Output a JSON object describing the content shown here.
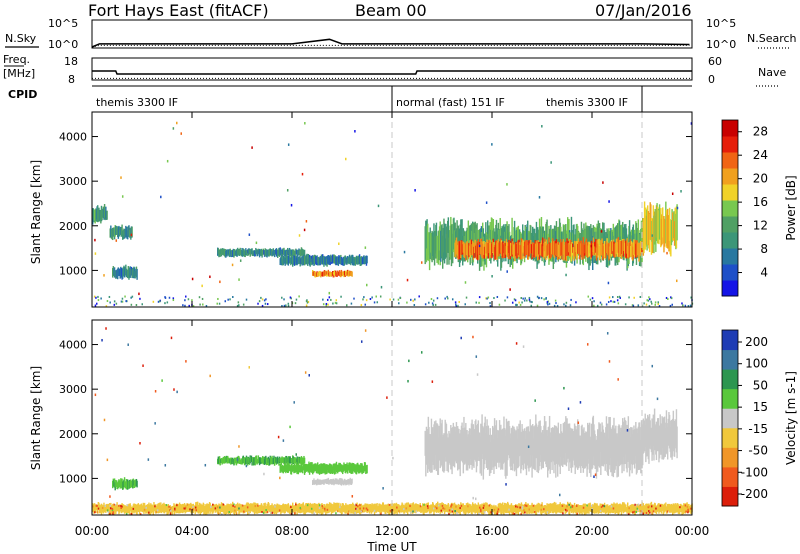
{
  "header": {
    "station": "Fort Hays East (fitACF)",
    "beam": "Beam 00",
    "date": "07/Jan/2016"
  },
  "labels": {
    "nsky": "N.Sky",
    "nsearch": "N.Search",
    "freq_line1": "Freq.",
    "freq_line2": "[MHz]",
    "nave": "Nave",
    "cpid": "CPID"
  },
  "noise_panel": {
    "ticks_left": [
      "10^5",
      "10^0"
    ],
    "ticks_right": [
      "10^5",
      "10^0"
    ]
  },
  "freq_panel": {
    "ticks_left": [
      "18",
      "8"
    ],
    "ticks_right": [
      "60",
      "0"
    ]
  },
  "cpid_segments": [
    {
      "label": "themis 3300 IF",
      "start": 0.0,
      "end": 12.0
    },
    {
      "label": "normal (fast) 151 IF",
      "start": 12.0,
      "end": 18.0
    },
    {
      "label": "themis 3300 IF",
      "start": 18.0,
      "end": 22.0
    }
  ],
  "cpid_dividers": [
    12.0,
    22.0
  ],
  "x_axis": {
    "label": "Time UT",
    "ticks": [
      "00:00",
      "04:00",
      "08:00",
      "12:00",
      "16:00",
      "20:00",
      "00:00"
    ]
  },
  "y_axis": {
    "label": "Slant Range [km]",
    "ticks": [
      "1000",
      "2000",
      "3000",
      "4000"
    ]
  },
  "power_scale": {
    "label": "Power [dB]",
    "ticks": [
      "4",
      "8",
      "12",
      "16",
      "20",
      "24",
      "28"
    ],
    "colors": [
      "#1414e6",
      "#1e50c8",
      "#2878a0",
      "#3c9678",
      "#50a064",
      "#78c850",
      "#f0d228",
      "#f0a01e",
      "#f06414",
      "#e61e0a",
      "#c80000"
    ]
  },
  "velocity_scale": {
    "label": "Velocity [m s-1]",
    "ticks": [
      "200",
      "100",
      "50",
      "15",
      "-15",
      "-50",
      "-100",
      "-200"
    ],
    "colors": [
      "#1e3cb4",
      "#3c78a0",
      "#2d9650",
      "#5ac83c",
      "#c8c8c8",
      "#f0c83c",
      "#f09628",
      "#f05a1e",
      "#dc1e0a"
    ]
  },
  "chart_data": [
    {
      "type": "line",
      "title": "N.Sky / N.Search",
      "x": [
        0,
        0.3,
        2,
        4,
        6,
        8,
        9.5,
        10,
        12,
        14,
        16,
        18,
        20,
        22,
        23.9
      ],
      "series": [
        {
          "name": "N.Sky",
          "values": [
            1,
            4,
            4,
            4,
            4,
            4,
            30,
            4,
            4,
            4,
            4,
            4,
            4,
            4,
            3
          ]
        },
        {
          "name": "N.Search",
          "values": [
            1,
            2,
            2,
            2,
            2,
            2,
            2,
            2,
            2,
            2,
            2,
            2,
            2,
            2,
            2
          ]
        }
      ],
      "xlim": [
        0,
        24
      ]
    },
    {
      "type": "line",
      "title": "Freq. / Nave",
      "x": [
        0,
        0.95,
        1.0,
        12.0,
        12.95,
        13.0,
        24
      ],
      "series": [
        {
          "name": "Freq. [MHz]",
          "values": [
            12.0,
            12.0,
            10.5,
            10.5,
            10.5,
            12.0,
            12.0
          ]
        },
        {
          "name": "Nave",
          "values": [
            20,
            20,
            20,
            20,
            20,
            20,
            20
          ]
        }
      ],
      "xlim": [
        0,
        24
      ],
      "ylim": [
        8,
        18
      ]
    },
    {
      "type": "heatmap",
      "title": "Power [dB]",
      "xlabel": "Time UT",
      "ylabel": "Slant Range [km]",
      "xlim": [
        0,
        24
      ],
      "ylim": [
        180,
        4550
      ],
      "zlim": [
        0,
        30
      ],
      "bands": [
        {
          "t0": 0.8,
          "t1": 1.8,
          "r0": 800,
          "r1": 1100,
          "value": 8
        },
        {
          "t0": 0.0,
          "t1": 0.6,
          "r0": 2050,
          "r1": 2450,
          "value": 10
        },
        {
          "t0": 0.7,
          "t1": 1.6,
          "r0": 1700,
          "r1": 2000,
          "value": 10
        },
        {
          "t0": 5.0,
          "t1": 8.5,
          "r0": 1300,
          "r1": 1500,
          "value": 9
        },
        {
          "t0": 7.5,
          "t1": 11.0,
          "r0": 1100,
          "r1": 1350,
          "value": 8
        },
        {
          "t0": 8.8,
          "t1": 10.4,
          "r0": 850,
          "r1": 1000,
          "value": 22
        },
        {
          "t0": 13.3,
          "t1": 22.0,
          "r0": 1100,
          "r1": 2100,
          "value": 12
        },
        {
          "t0": 14.5,
          "t1": 22.0,
          "r0": 1250,
          "r1": 1700,
          "value": 22
        },
        {
          "t0": 22.0,
          "t1": 23.4,
          "r0": 1400,
          "r1": 2450,
          "value": 18
        }
      ]
    },
    {
      "type": "heatmap",
      "title": "Velocity [m s-1]",
      "xlabel": "Time UT",
      "ylabel": "Slant Range [km]",
      "xlim": [
        0,
        24
      ],
      "ylim": [
        180,
        4550
      ],
      "zlim": [
        -200,
        200
      ],
      "bands": [
        {
          "t0": 0.8,
          "t1": 1.8,
          "r0": 750,
          "r1": 1000,
          "value": 30
        },
        {
          "t0": 5.0,
          "t1": 8.5,
          "r0": 1300,
          "r1": 1500,
          "value": 30
        },
        {
          "t0": 7.5,
          "t1": 11.0,
          "r0": 1100,
          "r1": 1350,
          "value": 25
        },
        {
          "t0": 8.8,
          "t1": 10.4,
          "r0": 850,
          "r1": 1000,
          "value": 0
        },
        {
          "t0": 13.3,
          "t1": 22.0,
          "r0": 1100,
          "r1": 2300,
          "value": 0
        },
        {
          "t0": 22.0,
          "t1": 23.4,
          "r0": 1400,
          "r1": 2450,
          "value": 0
        },
        {
          "t0": 0.0,
          "t1": 24.0,
          "r0": 200,
          "r1": 450,
          "value": -20
        }
      ]
    }
  ]
}
